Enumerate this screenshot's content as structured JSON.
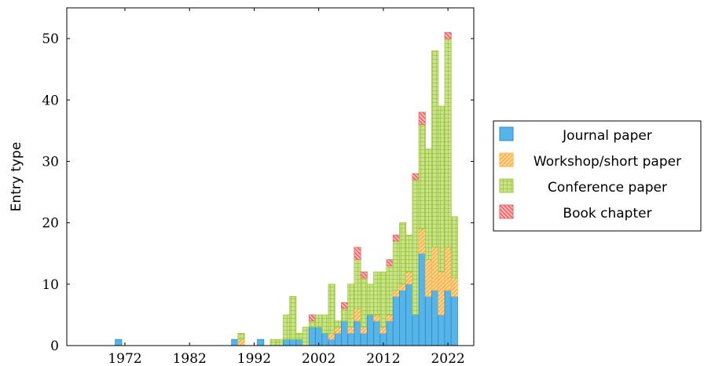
{
  "chart_data": {
    "type": "bar",
    "stacked": true,
    "ylabel": "Entry type",
    "xlabel": "",
    "xlim": [
      1963,
      2026
    ],
    "ylim": [
      0,
      55
    ],
    "x_ticks": [
      1972,
      1982,
      1992,
      2002,
      2012,
      2022
    ],
    "y_ticks": [
      0,
      10,
      20,
      30,
      40,
      50
    ],
    "legend_position": "right",
    "grid": false,
    "years": [
      1971,
      1989,
      1990,
      1993,
      1995,
      1996,
      1997,
      1998,
      1999,
      2000,
      2001,
      2002,
      2003,
      2004,
      2005,
      2006,
      2007,
      2008,
      2009,
      2010,
      2011,
      2012,
      2013,
      2014,
      2015,
      2016,
      2017,
      2018,
      2019,
      2020,
      2021,
      2022,
      2023
    ],
    "series": [
      {
        "name": "Journal paper",
        "color": "#56b4e9",
        "pattern": "none",
        "values": [
          1,
          1,
          0,
          1,
          0,
          0,
          1,
          1,
          1,
          0,
          3,
          3,
          2,
          1,
          2,
          4,
          2,
          4,
          2,
          5,
          4,
          2,
          4,
          8,
          9,
          10,
          5,
          15,
          8,
          9,
          5,
          9,
          8
        ]
      },
      {
        "name": "Workshop/short paper",
        "color": "#ffb347",
        "pattern": "diag",
        "values": [
          0,
          0,
          1,
          0,
          0,
          0,
          0,
          0,
          0,
          0,
          0,
          0,
          0,
          1,
          1,
          0,
          1,
          2,
          1,
          0,
          1,
          1,
          1,
          1,
          1,
          2,
          0,
          4,
          6,
          7,
          7,
          7,
          3
        ]
      },
      {
        "name": "Conference paper",
        "color": "#9acd32",
        "pattern": "grid",
        "values": [
          0,
          0,
          1,
          0,
          1,
          1,
          4,
          7,
          1,
          3,
          1,
          2,
          3,
          8,
          1,
          2,
          7,
          8,
          8,
          5,
          7,
          9,
          8,
          8,
          10,
          6,
          22,
          17,
          18,
          32,
          27,
          34,
          10
        ]
      },
      {
        "name": "Book chapter",
        "color": "#f06464",
        "pattern": "diag-rev",
        "values": [
          0,
          0,
          0,
          0,
          0,
          0,
          0,
          0,
          0,
          0,
          1,
          0,
          0,
          0,
          0,
          1,
          0,
          2,
          1,
          0,
          0,
          0,
          1,
          1,
          0,
          0,
          1,
          2,
          0,
          0,
          0,
          1,
          0
        ]
      }
    ]
  }
}
